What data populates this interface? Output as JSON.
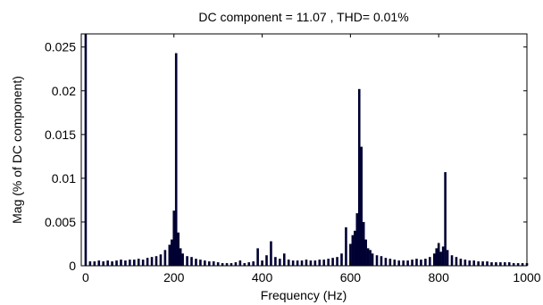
{
  "chart_data": {
    "type": "bar",
    "title": "DC component = 11.07 , THD= 0.01%",
    "xlabel": "Frequency (Hz)",
    "ylabel": "Mag (% of DC component)",
    "xlim": [
      -10,
      1000
    ],
    "ylim": [
      0,
      0.0265
    ],
    "x_ticks": [
      0,
      200,
      400,
      600,
      800,
      1000
    ],
    "y_ticks": [
      0,
      0.005,
      0.01,
      0.015,
      0.02,
      0.025
    ],
    "x_tick_labels": [
      "0",
      "200",
      "400",
      "600",
      "800",
      "1000"
    ],
    "y_tick_labels": [
      "0",
      "0.005",
      "0.01",
      "0.015",
      "0.02",
      "0.025"
    ],
    "bar_color": "#000033",
    "grid": false,
    "x": [
      0,
      10,
      20,
      30,
      40,
      50,
      60,
      70,
      80,
      90,
      100,
      110,
      120,
      130,
      140,
      150,
      160,
      170,
      180,
      190,
      195,
      200,
      205,
      210,
      215,
      220,
      230,
      240,
      250,
      260,
      270,
      280,
      290,
      300,
      310,
      320,
      330,
      340,
      350,
      360,
      370,
      380,
      390,
      400,
      410,
      420,
      430,
      440,
      450,
      460,
      470,
      480,
      490,
      500,
      510,
      520,
      530,
      540,
      550,
      560,
      570,
      580,
      590,
      600,
      605,
      610,
      615,
      620,
      625,
      630,
      635,
      640,
      645,
      650,
      660,
      670,
      680,
      690,
      700,
      710,
      720,
      730,
      740,
      750,
      760,
      770,
      780,
      790,
      795,
      800,
      805,
      810,
      815,
      820,
      830,
      840,
      850,
      860,
      870,
      880,
      890,
      900,
      910,
      920,
      930,
      940,
      950,
      960,
      970,
      980,
      990,
      1000
    ],
    "values": [
      0.0265,
      0.0005,
      0.0005,
      0.0006,
      0.0005,
      0.0006,
      0.0005,
      0.0006,
      0.0007,
      0.0006,
      0.0007,
      0.0007,
      0.0008,
      0.0007,
      0.0009,
      0.001,
      0.0011,
      0.0013,
      0.0018,
      0.0024,
      0.003,
      0.0063,
      0.0243,
      0.0038,
      0.002,
      0.0014,
      0.0011,
      0.001,
      0.0008,
      0.0007,
      0.0006,
      0.0005,
      0.0005,
      0.0004,
      0.0003,
      0.0003,
      0.0003,
      0.0004,
      0.0006,
      0.0003,
      0.0004,
      0.0005,
      0.002,
      0.0006,
      0.0012,
      0.0028,
      0.001,
      0.0008,
      0.0014,
      0.0007,
      0.0006,
      0.0006,
      0.0006,
      0.0007,
      0.0006,
      0.0006,
      0.0007,
      0.0007,
      0.0008,
      0.0009,
      0.001,
      0.0014,
      0.0044,
      0.0025,
      0.0035,
      0.004,
      0.006,
      0.0202,
      0.0136,
      0.005,
      0.003,
      0.002,
      0.0018,
      0.0014,
      0.0012,
      0.0011,
      0.0009,
      0.0008,
      0.0007,
      0.0006,
      0.0006,
      0.0006,
      0.0007,
      0.0008,
      0.0007,
      0.0008,
      0.001,
      0.0014,
      0.002,
      0.0026,
      0.0016,
      0.0022,
      0.0107,
      0.0018,
      0.0012,
      0.001,
      0.0008,
      0.0007,
      0.0006,
      0.0006,
      0.0005,
      0.0005,
      0.0005,
      0.0004,
      0.0004,
      0.0004,
      0.0004,
      0.0004,
      0.0003,
      0.0003,
      0.0003,
      0.0003
    ]
  }
}
